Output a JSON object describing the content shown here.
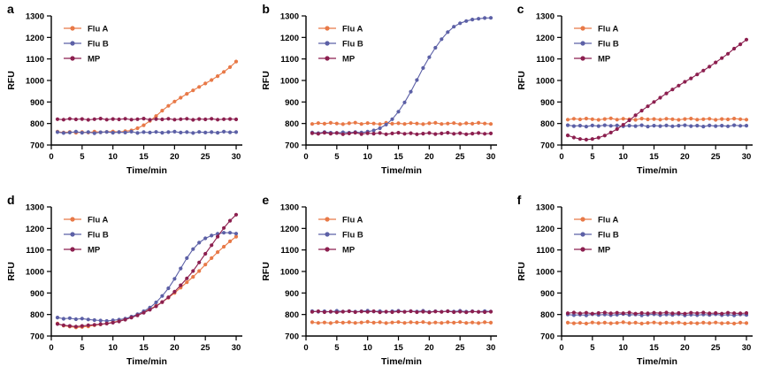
{
  "chart_data": [
    {
      "type": "line",
      "panel_label": "a",
      "xlabel": "Time/min",
      "ylabel": "RFU",
      "xlim": [
        0,
        31
      ],
      "ylim": [
        700,
        1300
      ],
      "xticks": [
        0,
        5,
        10,
        15,
        20,
        25,
        30
      ],
      "yticks": [
        700,
        800,
        900,
        1000,
        1100,
        1200,
        1300
      ],
      "x": [
        1,
        2,
        3,
        4,
        5,
        6,
        7,
        8,
        9,
        10,
        11,
        12,
        13,
        14,
        15,
        16,
        17,
        18,
        19,
        20,
        21,
        22,
        23,
        24,
        25,
        26,
        27,
        28,
        29,
        30
      ],
      "series": [
        {
          "name": "Flu A",
          "color": "#E87947",
          "values": [
            762,
            758,
            761,
            757,
            760,
            758,
            762,
            759,
            761,
            763,
            760,
            764,
            768,
            778,
            792,
            812,
            835,
            860,
            882,
            902,
            920,
            938,
            954,
            970,
            986,
            1002,
            1020,
            1040,
            1062,
            1088
          ]
        },
        {
          "name": "Flu B",
          "color": "#5C60A6",
          "values": [
            760,
            756,
            758,
            762,
            757,
            760,
            755,
            759,
            761,
            757,
            760,
            758,
            762,
            756,
            760,
            758,
            761,
            757,
            760,
            762,
            758,
            760,
            756,
            761,
            758,
            760,
            757,
            762,
            759,
            760
          ]
        },
        {
          "name": "MP",
          "color": "#8C1F4F",
          "values": [
            820,
            818,
            822,
            819,
            821,
            817,
            820,
            823,
            818,
            821,
            819,
            822,
            818,
            820,
            823,
            817,
            821,
            819,
            822,
            818,
            820,
            822,
            817,
            821,
            819,
            822,
            818,
            820,
            821,
            819
          ]
        }
      ]
    },
    {
      "type": "line",
      "panel_label": "b",
      "xlabel": "Time/min",
      "ylabel": "RFU",
      "xlim": [
        0,
        31
      ],
      "ylim": [
        700,
        1300
      ],
      "xticks": [
        0,
        5,
        10,
        15,
        20,
        25,
        30
      ],
      "yticks": [
        700,
        800,
        900,
        1000,
        1100,
        1200,
        1300
      ],
      "x": [
        1,
        2,
        3,
        4,
        5,
        6,
        7,
        8,
        9,
        10,
        11,
        12,
        13,
        14,
        15,
        16,
        17,
        18,
        19,
        20,
        21,
        22,
        23,
        24,
        25,
        26,
        27,
        28,
        29,
        30
      ],
      "series": [
        {
          "name": "Flu A",
          "color": "#E87947",
          "values": [
            798,
            802,
            799,
            803,
            800,
            797,
            801,
            804,
            798,
            802,
            800,
            797,
            803,
            799,
            801,
            798,
            802,
            800,
            797,
            801,
            803,
            798,
            800,
            802,
            797,
            801,
            799,
            803,
            800,
            798
          ]
        },
        {
          "name": "Flu B",
          "color": "#5C60A6",
          "values": [
            758,
            755,
            760,
            757,
            756,
            759,
            757,
            760,
            758,
            762,
            768,
            778,
            795,
            820,
            855,
            898,
            948,
            1002,
            1058,
            1108,
            1152,
            1192,
            1225,
            1250,
            1266,
            1276,
            1283,
            1287,
            1290,
            1291
          ]
        },
        {
          "name": "MP",
          "color": "#8C1F4F",
          "values": [
            755,
            752,
            757,
            753,
            756,
            750,
            754,
            757,
            751,
            755,
            753,
            756,
            750,
            754,
            757,
            752,
            755,
            750,
            753,
            756,
            751,
            754,
            757,
            752,
            755,
            750,
            753,
            756,
            752,
            754
          ]
        }
      ]
    },
    {
      "type": "line",
      "panel_label": "c",
      "xlabel": "Time/min",
      "ylabel": "RFU",
      "xlim": [
        0,
        31
      ],
      "ylim": [
        700,
        1300
      ],
      "xticks": [
        0,
        5,
        10,
        15,
        20,
        25,
        30
      ],
      "yticks": [
        700,
        800,
        900,
        1000,
        1100,
        1200,
        1300
      ],
      "x": [
        1,
        2,
        3,
        4,
        5,
        6,
        7,
        8,
        9,
        10,
        11,
        12,
        13,
        14,
        15,
        16,
        17,
        18,
        19,
        20,
        21,
        22,
        23,
        24,
        25,
        26,
        27,
        28,
        29,
        30
      ],
      "series": [
        {
          "name": "Flu A",
          "color": "#E87947",
          "values": [
            818,
            822,
            819,
            823,
            820,
            817,
            821,
            824,
            818,
            822,
            820,
            817,
            823,
            819,
            821,
            818,
            822,
            820,
            817,
            821,
            823,
            818,
            820,
            822,
            817,
            821,
            819,
            823,
            820,
            818
          ]
        },
        {
          "name": "Flu B",
          "color": "#5C60A6",
          "values": [
            792,
            788,
            790,
            786,
            791,
            788,
            792,
            789,
            791,
            787,
            790,
            788,
            792,
            786,
            790,
            788,
            791,
            787,
            790,
            792,
            788,
            790,
            786,
            791,
            788,
            790,
            787,
            792,
            789,
            790
          ]
        },
        {
          "name": "MP",
          "color": "#8C1F4F",
          "values": [
            745,
            735,
            728,
            725,
            728,
            734,
            744,
            758,
            774,
            794,
            815,
            838,
            860,
            880,
            900,
            920,
            940,
            958,
            976,
            994,
            1010,
            1028,
            1046,
            1064,
            1084,
            1104,
            1124,
            1148,
            1168,
            1190
          ]
        }
      ]
    },
    {
      "type": "line",
      "panel_label": "d",
      "xlabel": "Time/min",
      "ylabel": "RFU",
      "xlim": [
        0,
        31
      ],
      "ylim": [
        700,
        1300
      ],
      "xticks": [
        0,
        5,
        10,
        15,
        20,
        25,
        30
      ],
      "yticks": [
        700,
        800,
        900,
        1000,
        1100,
        1200,
        1300
      ],
      "x": [
        1,
        2,
        3,
        4,
        5,
        6,
        7,
        8,
        9,
        10,
        11,
        12,
        13,
        14,
        15,
        16,
        17,
        18,
        19,
        20,
        21,
        22,
        23,
        24,
        25,
        26,
        27,
        28,
        29,
        30
      ],
      "series": [
        {
          "name": "Flu A",
          "color": "#E87947",
          "values": [
            758,
            748,
            744,
            740,
            742,
            745,
            750,
            754,
            758,
            764,
            770,
            778,
            788,
            800,
            812,
            825,
            840,
            858,
            878,
            900,
            925,
            950,
            975,
            1002,
            1032,
            1062,
            1090,
            1115,
            1140,
            1162
          ]
        },
        {
          "name": "Flu B",
          "color": "#5C60A6",
          "values": [
            786,
            780,
            783,
            778,
            781,
            777,
            774,
            772,
            770,
            773,
            776,
            781,
            790,
            801,
            815,
            832,
            856,
            886,
            922,
            966,
            1014,
            1062,
            1104,
            1134,
            1154,
            1167,
            1175,
            1180,
            1180,
            1176
          ]
        },
        {
          "name": "MP",
          "color": "#8C1F4F",
          "values": [
            756,
            750,
            747,
            744,
            747,
            750,
            752,
            755,
            758,
            762,
            768,
            776,
            786,
            796,
            808,
            822,
            838,
            858,
            880,
            906,
            936,
            968,
            1002,
            1042,
            1082,
            1122,
            1162,
            1202,
            1236,
            1264
          ]
        }
      ]
    },
    {
      "type": "line",
      "panel_label": "e",
      "xlabel": "Time/min",
      "ylabel": "RFU",
      "xlim": [
        0,
        31
      ],
      "ylim": [
        700,
        1300
      ],
      "xticks": [
        0,
        5,
        10,
        15,
        20,
        25,
        30
      ],
      "yticks": [
        700,
        800,
        900,
        1000,
        1100,
        1200,
        1300
      ],
      "x": [
        1,
        2,
        3,
        4,
        5,
        6,
        7,
        8,
        9,
        10,
        11,
        12,
        13,
        14,
        15,
        16,
        17,
        18,
        19,
        20,
        21,
        22,
        23,
        24,
        25,
        26,
        27,
        28,
        29,
        30
      ],
      "series": [
        {
          "name": "Flu A",
          "color": "#E87947",
          "values": [
            764,
            761,
            763,
            760,
            765,
            762,
            764,
            761,
            763,
            766,
            762,
            764,
            760,
            763,
            765,
            761,
            764,
            762,
            765,
            760,
            763,
            761,
            764,
            762,
            765,
            761,
            763,
            760,
            764,
            762
          ]
        },
        {
          "name": "Flu B",
          "color": "#5C60A6",
          "values": [
            816,
            813,
            815,
            812,
            817,
            814,
            816,
            813,
            815,
            818,
            814,
            816,
            812,
            815,
            817,
            813,
            816,
            814,
            817,
            812,
            815,
            813,
            816,
            814,
            817,
            813,
            815,
            812,
            816,
            814
          ]
        },
        {
          "name": "MP",
          "color": "#8C1F4F",
          "values": [
            812,
            815,
            811,
            814,
            810,
            813,
            815,
            811,
            814,
            812,
            815,
            810,
            813,
            811,
            814,
            812,
            815,
            811,
            813,
            810,
            814,
            812,
            815,
            811,
            813,
            810,
            814,
            812,
            811,
            813
          ]
        }
      ]
    },
    {
      "type": "line",
      "panel_label": "f",
      "xlabel": "Time/min",
      "ylabel": "RFU",
      "xlim": [
        0,
        31
      ],
      "ylim": [
        700,
        1300
      ],
      "xticks": [
        0,
        5,
        10,
        15,
        20,
        25,
        30
      ],
      "yticks": [
        700,
        800,
        900,
        1000,
        1100,
        1200,
        1300
      ],
      "x": [
        1,
        2,
        3,
        4,
        5,
        6,
        7,
        8,
        9,
        10,
        11,
        12,
        13,
        14,
        15,
        16,
        17,
        18,
        19,
        20,
        21,
        22,
        23,
        24,
        25,
        26,
        27,
        28,
        29,
        30
      ],
      "series": [
        {
          "name": "Flu A",
          "color": "#E87947",
          "values": [
            762,
            759,
            761,
            758,
            763,
            760,
            762,
            759,
            761,
            764,
            760,
            762,
            758,
            761,
            763,
            759,
            762,
            760,
            763,
            758,
            761,
            759,
            762,
            760,
            763,
            759,
            761,
            758,
            762,
            760
          ]
        },
        {
          "name": "Flu B",
          "color": "#5C60A6",
          "values": [
            800,
            797,
            799,
            796,
            801,
            798,
            800,
            797,
            799,
            802,
            798,
            800,
            796,
            799,
            801,
            797,
            800,
            798,
            801,
            796,
            799,
            797,
            800,
            798,
            801,
            797,
            799,
            796,
            800,
            798
          ]
        },
        {
          "name": "MP",
          "color": "#8C1F4F",
          "values": [
            806,
            809,
            805,
            808,
            804,
            807,
            809,
            805,
            808,
            806,
            809,
            804,
            807,
            805,
            808,
            806,
            809,
            805,
            807,
            804,
            808,
            806,
            809,
            805,
            807,
            804,
            808,
            806,
            805,
            807
          ]
        }
      ]
    }
  ]
}
